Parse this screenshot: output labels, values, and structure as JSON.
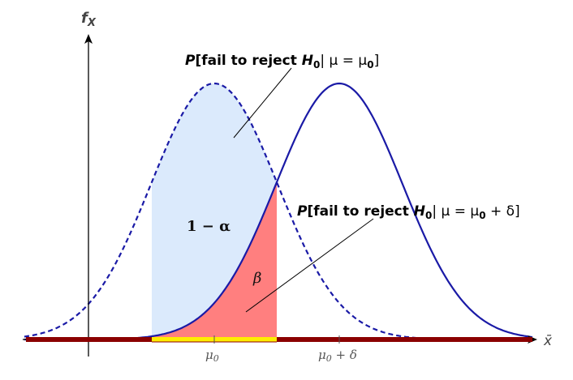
{
  "diagram": {
    "axis_labels": {
      "y": "f",
      "y_sub": "X",
      "x": "x̄"
    },
    "ticks": {
      "mu0": "μ",
      "mu0_sub": "0",
      "mu0_delta_a": "μ",
      "mu0_delta_sub": "0",
      "mu0_delta_b": " + δ"
    },
    "region_labels": {
      "one_minus_alpha": "1 − α",
      "beta": "β"
    },
    "annotations": {
      "null": {
        "p": "P",
        "open": "[fail to reject ",
        "h": "H",
        "h_sub": "0",
        "mid": "| μ = μ",
        "mu_sub": "0",
        "close": "]"
      },
      "alt": {
        "p": "P",
        "open": "[fail to reject ",
        "h": "H",
        "h_sub": "0",
        "mid": "| μ = μ",
        "mu_sub": "0",
        "close": " + δ]"
      }
    },
    "colors": {
      "null_curve": "#1a1aa6",
      "alt_curve": "#1a1aa6",
      "accept_fill": "#dbeafc",
      "beta_fill": "#ff7f7f",
      "reject_bar": "#8b0000",
      "accept_bar": "#ffee00",
      "axis": "#000000"
    }
  }
}
